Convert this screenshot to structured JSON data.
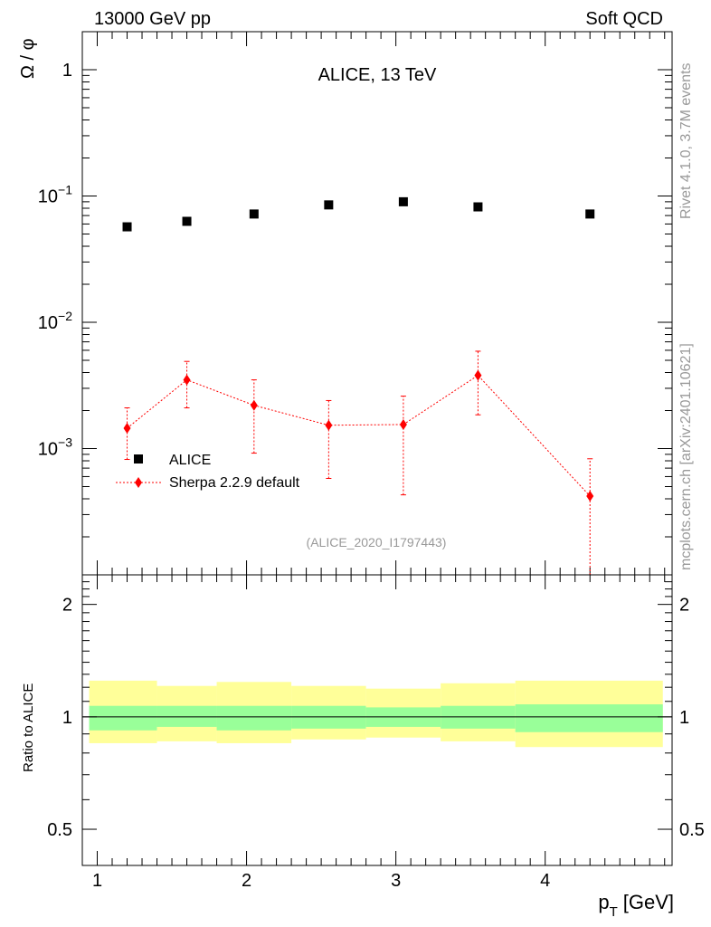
{
  "header": {
    "left": "13000 GeV pp",
    "right": "Soft QCD",
    "title": "ALICE, 13 TeV",
    "side_top": "Rivet 4.1.0,  3.7M events",
    "side_bottom": "mcplots.cern.ch [arXiv:2401.10621]",
    "analysis_id": "(ALICE_2020_I1797443)"
  },
  "chart_data": [
    {
      "type": "scatter",
      "title": "ALICE, 13 TeV",
      "ylabel": "Ω / φ",
      "yscale": "log",
      "ylim": [
        0.0001,
        2
      ],
      "xlim": [
        0.9,
        4.85
      ],
      "yticks": [
        {
          "value": 0.001,
          "base": "10",
          "exp": "−3"
        },
        {
          "value": 0.01,
          "base": "10",
          "exp": "−2"
        },
        {
          "value": 0.1,
          "base": "10",
          "exp": "−1"
        },
        {
          "value": 1,
          "label": "1"
        }
      ],
      "legend": {
        "position": "bottom-left"
      },
      "series": [
        {
          "name": "ALICE",
          "color": "#000000",
          "marker": "square",
          "x": [
            1.2,
            1.6,
            2.05,
            2.55,
            3.05,
            3.55,
            4.3
          ],
          "y": [
            0.057,
            0.063,
            0.072,
            0.085,
            0.09,
            0.082,
            0.072
          ]
        },
        {
          "name": "Sherpa 2.2.9 default",
          "color": "#ff0000",
          "marker": "diamond",
          "line": "dotted",
          "x": [
            1.2,
            1.6,
            2.05,
            2.55,
            3.05,
            3.55,
            4.3
          ],
          "y": [
            0.00145,
            0.0035,
            0.0022,
            0.00153,
            0.00155,
            0.0038,
            0.00042
          ],
          "yerr_low": [
            0.00082,
            0.0021,
            0.00092,
            0.00058,
            0.00043,
            0.00185,
            8e-05
          ],
          "yerr_high": [
            0.0021,
            0.0049,
            0.0035,
            0.0024,
            0.0026,
            0.0059,
            0.00083
          ]
        }
      ]
    },
    {
      "type": "area",
      "ylabel": "Ratio to ALICE",
      "xlabel": "p_T [GeV]",
      "xlabel_main": "p",
      "xlabel_sub": "T",
      "xlabel_unit": "[GeV]",
      "ylim": [
        0.4,
        2.4
      ],
      "xlim": [
        0.9,
        4.85
      ],
      "xticks": [
        1,
        2,
        3,
        4
      ],
      "yticks": [
        0.5,
        1,
        2
      ],
      "reference_line": 1,
      "band_colors": {
        "inner": "#99ff99",
        "outer": "#ffff99"
      },
      "bins": [
        {
          "lo": 0.9,
          "hi": 1.4,
          "inner": [
            0.92,
            1.07
          ],
          "outer": [
            0.85,
            1.25
          ]
        },
        {
          "lo": 1.4,
          "hi": 1.8,
          "inner": [
            0.94,
            1.07
          ],
          "outer": [
            0.86,
            1.21
          ]
        },
        {
          "lo": 1.8,
          "hi": 2.3,
          "inner": [
            0.92,
            1.07
          ],
          "outer": [
            0.85,
            1.24
          ]
        },
        {
          "lo": 2.3,
          "hi": 2.8,
          "inner": [
            0.93,
            1.07
          ],
          "outer": [
            0.87,
            1.21
          ]
        },
        {
          "lo": 2.8,
          "hi": 3.3,
          "inner": [
            0.94,
            1.06
          ],
          "outer": [
            0.88,
            1.19
          ]
        },
        {
          "lo": 3.3,
          "hi": 3.8,
          "inner": [
            0.93,
            1.07
          ],
          "outer": [
            0.86,
            1.23
          ]
        },
        {
          "lo": 3.8,
          "hi": 4.85,
          "inner": [
            0.91,
            1.08
          ],
          "outer": [
            0.83,
            1.25
          ]
        }
      ]
    }
  ]
}
